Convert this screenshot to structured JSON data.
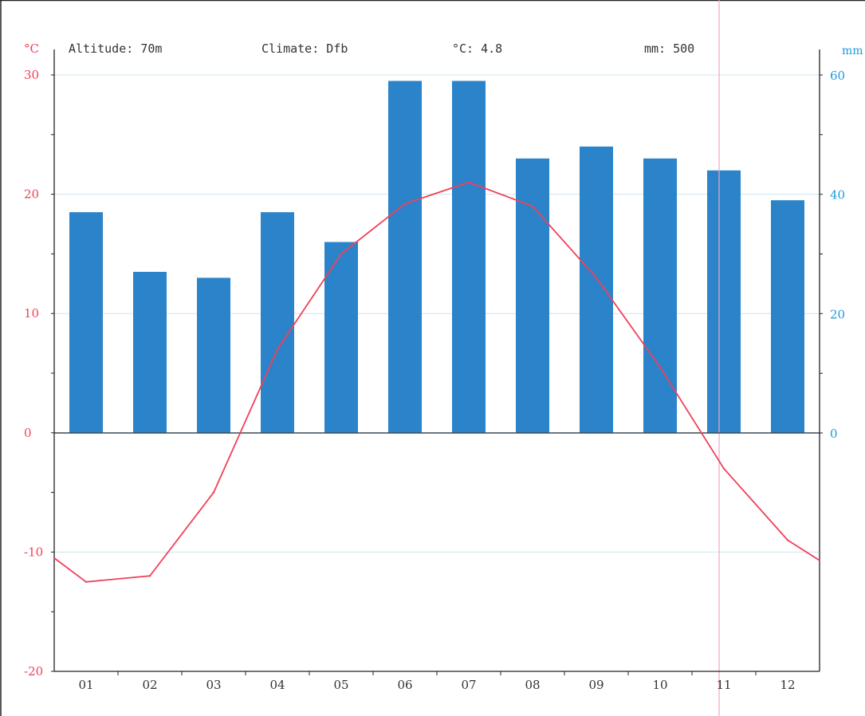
{
  "chart_data": {
    "type": "bar",
    "header": {
      "altitude": "Altitude: 70m",
      "climate": "Climate: Dfb",
      "temp": "°C: 4.8",
      "precip": "mm: 500"
    },
    "categories": [
      "01",
      "02",
      "03",
      "04",
      "05",
      "06",
      "07",
      "08",
      "09",
      "10",
      "11",
      "12"
    ],
    "series": [
      {
        "kind": "bar",
        "axis": "right",
        "values": [
          37,
          27,
          26,
          37,
          32,
          59,
          59,
          46,
          48,
          46,
          44,
          39
        ]
      },
      {
        "kind": "line",
        "axis": "left",
        "values": [
          -12.5,
          -12,
          -5,
          7,
          15,
          19.2,
          21,
          19,
          13,
          5.5,
          -3,
          -9
        ]
      }
    ],
    "line_edges": {
      "start": -10.5,
      "end": -10.7
    },
    "left_axis": {
      "unit": "°C",
      "ylim": [
        -20,
        30
      ],
      "ticks": [
        -20,
        -10,
        0,
        10,
        20,
        30
      ],
      "color": "#f0415a"
    },
    "right_axis": {
      "unit": "mm",
      "ylim": [
        0,
        60
      ],
      "ticks": [
        0,
        20,
        40,
        60
      ],
      "color": "#1a9be0"
    },
    "bar_color": "#2b83c9",
    "line_color": "#f0415a",
    "grid": true,
    "marker_month": "11"
  }
}
